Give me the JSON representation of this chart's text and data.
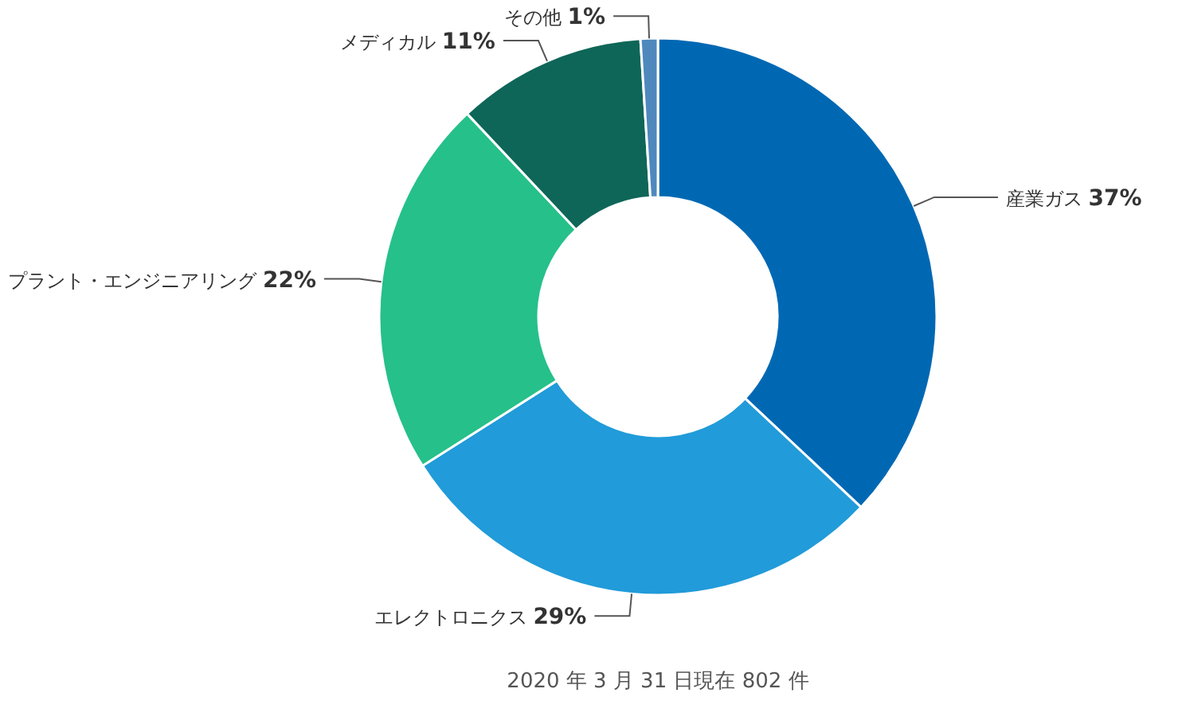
{
  "chart_data": {
    "type": "donut",
    "categories": [
      "産業ガス",
      "エレクトロニクス",
      "プラント・エンジニアリング",
      "メディカル",
      "その他"
    ],
    "values": [
      37,
      29,
      22,
      11,
      1
    ],
    "value_labels": [
      "37%",
      "29%",
      "22%",
      "11%",
      "1%"
    ],
    "colors": [
      "#0068b3",
      "#219bd9",
      "#26c08a",
      "#0e6658",
      "#4f88bd"
    ],
    "annotations": [
      "2020 年 3 月 31 日現在 802 件"
    ]
  }
}
